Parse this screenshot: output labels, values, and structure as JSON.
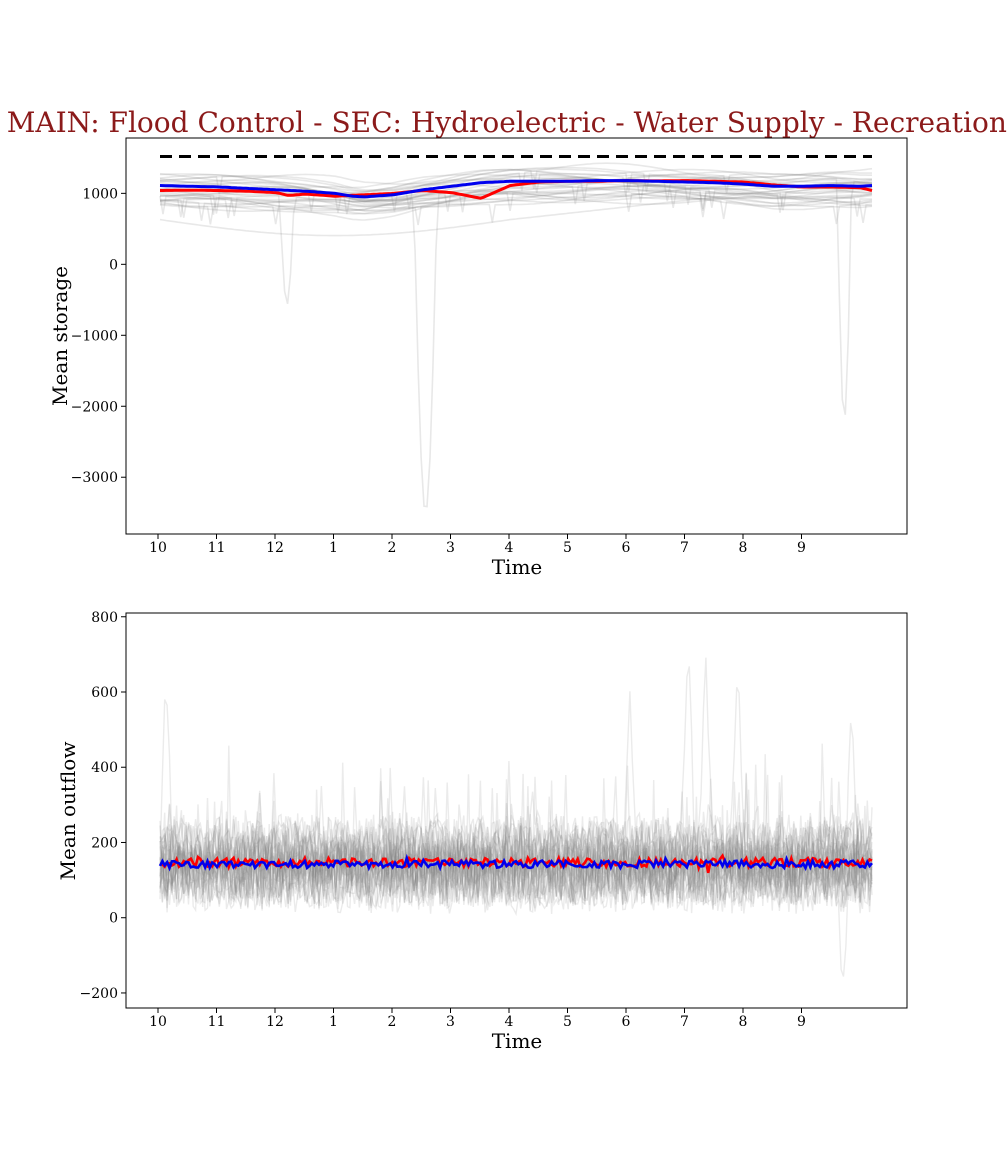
{
  "title": "MAIN: Flood Control - SEC: Hydroelectric - Water Supply - Recreation -",
  "colors": {
    "title": "#8b1a1a",
    "series_a": "#ff0000",
    "series_b": "#0000ee",
    "ensemble": "#808080",
    "reference": "#000000"
  },
  "chart_data": [
    {
      "type": "line",
      "xlabel": "Time",
      "ylabel": "Mean storage",
      "ylim": [
        -3800,
        1780
      ],
      "x_tick_labels": [
        "10",
        "11",
        "12",
        "1",
        "2",
        "3",
        "4",
        "5",
        "6",
        "7",
        "8",
        "9"
      ],
      "y_ticks": [
        -3000,
        -2000,
        -1000,
        0,
        1000
      ],
      "y_tick_labels": [
        "−3000",
        "−2000",
        "−1000",
        "0",
        "1000"
      ],
      "reference_line": {
        "value": 1520,
        "style": "dashed",
        "color": "#000000"
      },
      "series": [
        {
          "color": "#ff0000",
          "x": [
            0,
            0.5,
            1,
            1.5,
            2,
            2.2,
            2.5,
            3,
            3.5,
            4,
            4.5,
            5,
            5.5,
            6,
            6.5,
            7,
            7.5,
            8,
            8.5,
            9,
            9.5,
            10,
            10.5,
            11,
            11.5,
            12,
            12.2
          ],
          "values": [
            1040,
            1045,
            1040,
            1030,
            1010,
            970,
            990,
            960,
            980,
            1000,
            1040,
            1010,
            930,
            1110,
            1160,
            1170,
            1170,
            1180,
            1175,
            1180,
            1170,
            1160,
            1120,
            1090,
            1090,
            1080,
            1040
          ]
        },
        {
          "color": "#0000ee",
          "x": [
            0,
            0.5,
            1,
            1.5,
            2,
            2.5,
            3,
            3.3,
            3.5,
            4,
            4.5,
            5,
            5.5,
            6,
            6.5,
            7,
            7.5,
            8,
            8.5,
            9,
            9.5,
            10,
            10.5,
            11,
            11.5,
            12,
            12.2
          ],
          "values": [
            1110,
            1100,
            1090,
            1070,
            1050,
            1030,
            1000,
            960,
            950,
            980,
            1050,
            1100,
            1150,
            1170,
            1170,
            1170,
            1180,
            1180,
            1170,
            1160,
            1150,
            1130,
            1100,
            1100,
            1110,
            1100,
            1110
          ]
        }
      ],
      "ensemble_dips": [
        {
          "x_from": 2.05,
          "x_to": 2.3,
          "min": -570
        },
        {
          "x_from": 4.35,
          "x_to": 4.75,
          "min": -3500
        },
        {
          "x_from": 11.6,
          "x_to": 11.85,
          "min": -2200
        }
      ]
    },
    {
      "type": "line",
      "xlabel": "Time",
      "ylabel": "Mean outflow",
      "ylim": [
        -240,
        810
      ],
      "x_tick_labels": [
        "10",
        "11",
        "12",
        "1",
        "2",
        "3",
        "4",
        "5",
        "6",
        "7",
        "8",
        "9"
      ],
      "y_ticks": [
        -200,
        0,
        200,
        400,
        600,
        800
      ],
      "y_tick_labels": [
        "−200",
        "0",
        "200",
        "400",
        "600",
        "800"
      ],
      "series": [
        {
          "color": "#ff0000",
          "mean": 147,
          "amplitude": 12
        },
        {
          "color": "#0000ee",
          "mean": 142,
          "amplitude": 10
        }
      ],
      "ensemble_spikes": [
        {
          "x": 0.1,
          "value": 680
        },
        {
          "x": 8.05,
          "value": 610
        },
        {
          "x": 9.05,
          "value": 760
        },
        {
          "x": 9.35,
          "value": 700
        },
        {
          "x": 9.9,
          "value": 690
        },
        {
          "x": 11.85,
          "value": 580
        },
        {
          "x": 11.7,
          "value": -190
        }
      ]
    }
  ]
}
